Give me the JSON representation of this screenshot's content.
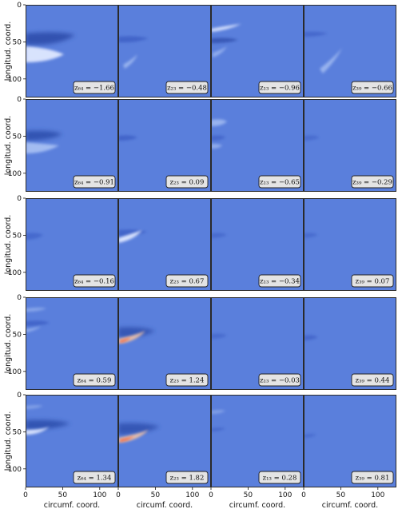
{
  "chart_data": {
    "type": "heatmap",
    "xlabel": "circumf. coord.",
    "ylabel": "longitud. coord.",
    "xticks": [
      "0",
      "50",
      "100"
    ],
    "yticks": [
      "0",
      "50",
      "100"
    ],
    "xlim": [
      0,
      125
    ],
    "ylim": [
      125,
      0
    ],
    "colors": {
      "background": "#5a7fdc",
      "frame": "#2a2a2a",
      "shadow": "#2e4fae",
      "dark": "#3759c2",
      "light": "#dfe8ff",
      "mid": "#a7bff2",
      "hot": "#f2643c",
      "warm": "#f5c4a6"
    },
    "rows": [
      {
        "panels": [
          {
            "label": "z₆₄ = −1.66",
            "var": "z",
            "sub": "64",
            "value": "−1.66"
          },
          {
            "label": "z₂₃ = −0.48",
            "var": "z",
            "sub": "23",
            "value": "−0.48"
          },
          {
            "label": "z₁₃ = −0.96",
            "var": "z",
            "sub": "13",
            "value": "−0.96"
          },
          {
            "label": "z₃₉ = −0.66",
            "var": "z",
            "sub": "39",
            "value": "−0.66"
          }
        ]
      },
      {
        "panels": [
          {
            "label": "z₆₄ = −0.91",
            "var": "z",
            "sub": "64",
            "value": "−0.91"
          },
          {
            "label": "z₂₃ = 0.09",
            "var": "z",
            "sub": "23",
            "value": "0.09"
          },
          {
            "label": "z₁₃ = −0.65",
            "var": "z",
            "sub": "13",
            "value": "−0.65"
          },
          {
            "label": "z₃₉ = −0.29",
            "var": "z",
            "sub": "39",
            "value": "−0.29"
          }
        ]
      },
      {
        "panels": [
          {
            "label": "z₆₄ = −0.16",
            "var": "z",
            "sub": "64",
            "value": "−0.16"
          },
          {
            "label": "z₂₃ = 0.67",
            "var": "z",
            "sub": "23",
            "value": "0.67"
          },
          {
            "label": "z₁₃ = −0.34",
            "var": "z",
            "sub": "13",
            "value": "−0.34"
          },
          {
            "label": "z₃₉ = 0.07",
            "var": "z",
            "sub": "39",
            "value": "0.07"
          }
        ]
      },
      {
        "panels": [
          {
            "label": "z₆₄ = 0.59",
            "var": "z",
            "sub": "64",
            "value": "0.59"
          },
          {
            "label": "z₂₃ = 1.24",
            "var": "z",
            "sub": "23",
            "value": "1.24"
          },
          {
            "label": "z₁₃ = −0.03",
            "var": "z",
            "sub": "13",
            "value": "−0.03"
          },
          {
            "label": "z₃₉ = 0.44",
            "var": "z",
            "sub": "39",
            "value": "0.44"
          }
        ]
      },
      {
        "panels": [
          {
            "label": "z₆₄ = 1.34",
            "var": "z",
            "sub": "64",
            "value": "1.34"
          },
          {
            "label": "z₂₃ = 1.82",
            "var": "z",
            "sub": "23",
            "value": "1.82"
          },
          {
            "label": "z₁₃ = 0.28",
            "var": "z",
            "sub": "13",
            "value": "0.28"
          },
          {
            "label": "z₃₉ = 0.81",
            "var": "z",
            "sub": "39",
            "value": "0.81"
          }
        ]
      }
    ]
  }
}
